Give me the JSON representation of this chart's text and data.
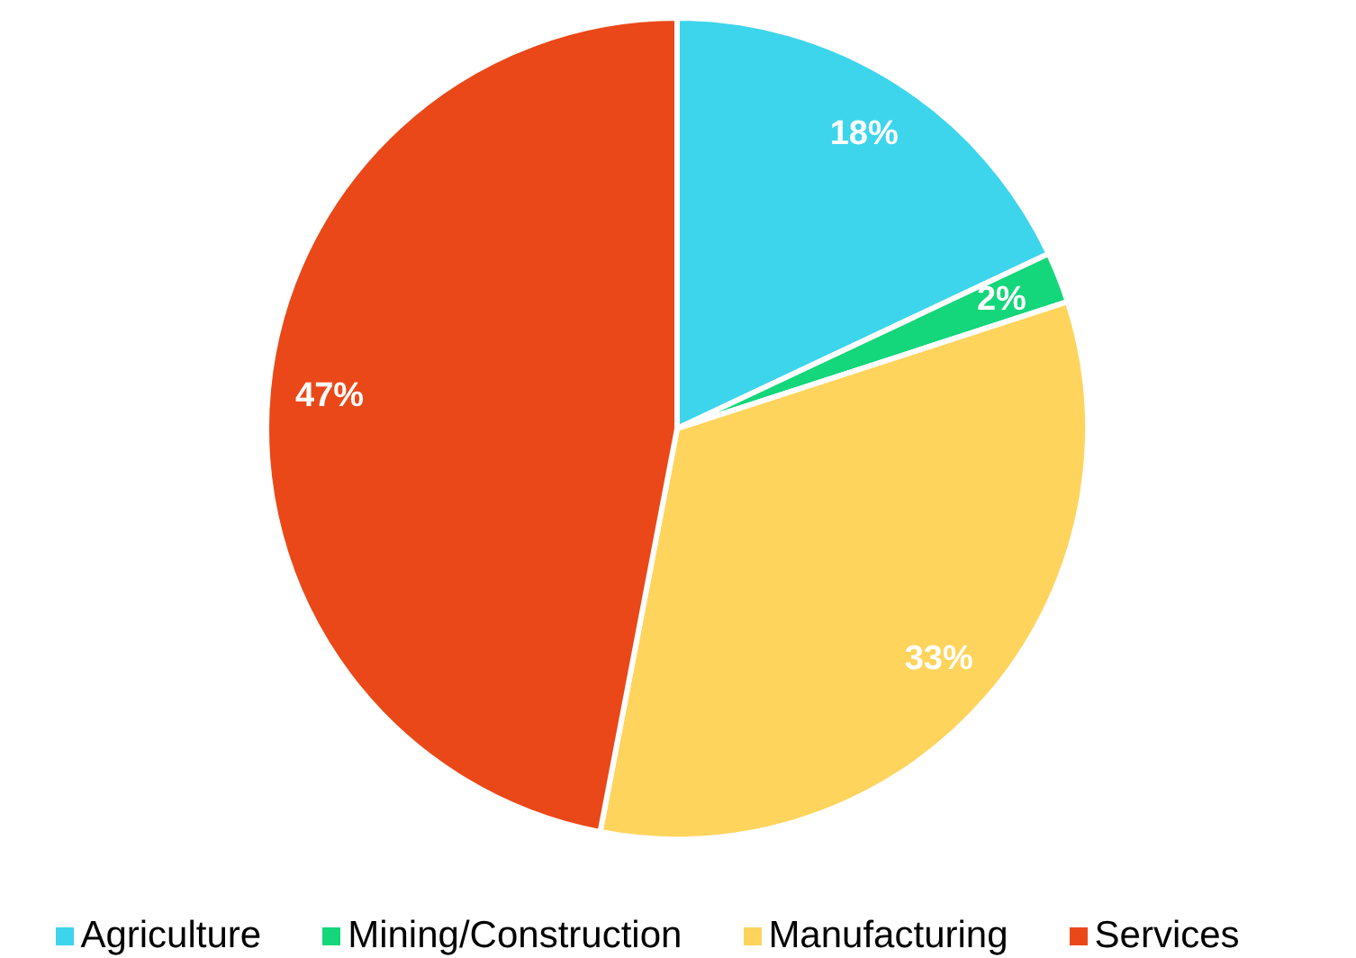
{
  "chart_data": {
    "type": "pie",
    "categories": [
      "Agriculture",
      "Mining/Construction",
      "Manufacturing",
      "Services"
    ],
    "values": [
      18,
      2,
      33,
      47
    ],
    "colors": [
      "#3dd5ec",
      "#14d67a",
      "#fed45c",
      "#ea4819"
    ],
    "value_labels": [
      "18%",
      "2%",
      "33%",
      "47%"
    ],
    "legend": "bottom"
  }
}
